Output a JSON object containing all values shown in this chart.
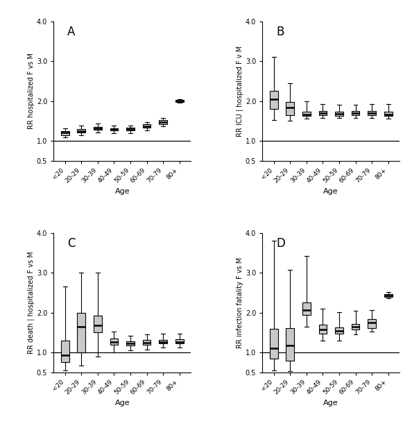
{
  "categories": [
    "<20",
    "20-29",
    "30-39",
    "40-49",
    "50-59",
    "60-69",
    "70-79",
    "80+"
  ],
  "hline_y": 1.0,
  "box_facecolor": "#c8c8c8",
  "box_edgecolor": "#000000",
  "median_color": "#000000",
  "whisker_color": "#000000",
  "ylabel_A": "RR hospitalized F vs M",
  "ylabel_B": "RR ICU | hospitalized F v M",
  "ylabel_C": "RR death | hospitalized F vs M",
  "ylabel_D": "RR infection fatality F vs M",
  "xlabel": "Age",
  "panels": {
    "A": {
      "q1": [
        1.14,
        1.2,
        1.27,
        1.26,
        1.26,
        1.33,
        1.42,
        1.97
      ],
      "median": [
        1.2,
        1.25,
        1.31,
        1.29,
        1.3,
        1.37,
        1.47,
        2.0
      ],
      "q3": [
        1.25,
        1.3,
        1.35,
        1.32,
        1.33,
        1.41,
        1.52,
        2.02
      ],
      "whislo": [
        1.09,
        1.13,
        1.21,
        1.19,
        1.19,
        1.26,
        1.37,
        1.96
      ],
      "whishi": [
        1.31,
        1.38,
        1.43,
        1.38,
        1.39,
        1.47,
        1.57,
        2.04
      ]
    },
    "B": {
      "q1": [
        1.8,
        1.65,
        1.62,
        1.65,
        1.63,
        1.64,
        1.65,
        1.62
      ],
      "median": [
        2.05,
        1.83,
        1.67,
        1.7,
        1.68,
        1.7,
        1.7,
        1.67
      ],
      "q3": [
        2.25,
        1.97,
        1.73,
        1.75,
        1.73,
        1.75,
        1.75,
        1.73
      ],
      "whislo": [
        1.52,
        1.5,
        1.55,
        1.58,
        1.57,
        1.58,
        1.57,
        1.56
      ],
      "whishi": [
        3.1,
        2.45,
        2.0,
        1.93,
        1.9,
        1.9,
        1.93,
        1.93
      ]
    },
    "C": {
      "q1": [
        0.75,
        1.0,
        1.5,
        1.2,
        1.17,
        1.2,
        1.22,
        1.22
      ],
      "median": [
        0.93,
        1.65,
        1.68,
        1.27,
        1.22,
        1.25,
        1.27,
        1.27
      ],
      "q3": [
        1.3,
        2.0,
        1.92,
        1.35,
        1.28,
        1.32,
        1.32,
        1.33
      ],
      "whislo": [
        0.55,
        0.67,
        0.9,
        1.0,
        1.05,
        1.08,
        1.12,
        1.13
      ],
      "whishi": [
        2.65,
        3.0,
        3.0,
        1.52,
        1.42,
        1.45,
        1.48,
        1.47
      ]
    },
    "D": {
      "q1": [
        0.85,
        0.8,
        1.95,
        1.47,
        1.47,
        1.58,
        1.62,
        2.4
      ],
      "median": [
        1.1,
        1.18,
        2.07,
        1.58,
        1.55,
        1.65,
        1.75,
        2.43
      ],
      "q3": [
        1.6,
        1.62,
        2.25,
        1.7,
        1.63,
        1.72,
        1.83,
        2.47
      ],
      "whislo": [
        0.55,
        0.53,
        1.65,
        1.3,
        1.3,
        1.45,
        1.52,
        2.37
      ],
      "whishi": [
        3.8,
        3.07,
        3.42,
        2.1,
        2.02,
        2.05,
        2.07,
        2.52
      ]
    }
  }
}
